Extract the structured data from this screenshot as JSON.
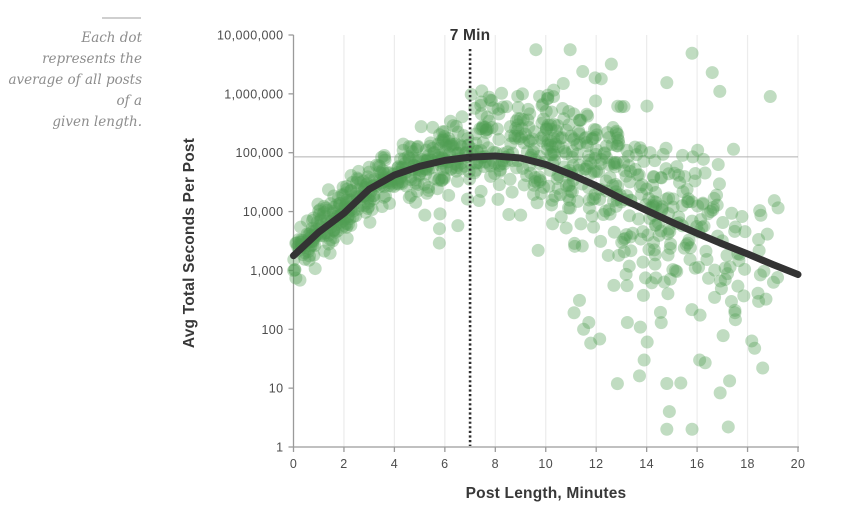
{
  "annotation": {
    "lines": [
      "Each dot represents the",
      "average of all posts of a",
      "given length."
    ]
  },
  "chart_data": {
    "type": "scatter",
    "title": "",
    "xlabel": "Post Length, Minutes",
    "ylabel": "Avg Total Seconds Per Post",
    "x_range": [
      0,
      20
    ],
    "x_ticks": [
      0,
      2,
      4,
      6,
      8,
      10,
      12,
      14,
      16,
      18,
      20
    ],
    "y_scale": "log",
    "y_range": [
      1,
      10000000
    ],
    "y_ticks": [
      {
        "value": 10000000,
        "label": "10,000,000"
      },
      {
        "value": 1000000,
        "label": "1,000,000"
      },
      {
        "value": 100000,
        "label": "100,000"
      },
      {
        "value": 10000,
        "label": "10,000"
      },
      {
        "value": 1000,
        "label": "1,000"
      },
      {
        "value": 100,
        "label": "100"
      },
      {
        "value": 10,
        "label": "10"
      },
      {
        "value": 1,
        "label": "1"
      }
    ],
    "grid": {
      "vertical_every": 2,
      "horizontal": false
    },
    "reference_line": {
      "value": 85000
    },
    "annotation_line": {
      "x": 7,
      "label": "7 Min"
    },
    "trend_curve": {
      "x": [
        0,
        1,
        2,
        3,
        4,
        5,
        6,
        7,
        8,
        9,
        10,
        11,
        12,
        13,
        14,
        15,
        16,
        17,
        18,
        19,
        20
      ],
      "log10_y": [
        3.25,
        3.65,
        3.97,
        4.38,
        4.62,
        4.77,
        4.87,
        4.925,
        4.945,
        4.91,
        4.8,
        4.63,
        4.44,
        4.22,
        4.02,
        3.82,
        3.63,
        3.45,
        3.28,
        3.1,
        2.93
      ],
      "y_seconds": [
        1780,
        4470,
        9330,
        24000,
        41700,
        58900,
        74100,
        84100,
        88100,
        81300,
        63100,
        42700,
        27500,
        16600,
        10500,
        6610,
        4270,
        2820,
        1910,
        1260,
        850
      ]
    },
    "scatter": {
      "count": 940,
      "seed": 20,
      "x_split": 12.5,
      "split_fraction": 0.74,
      "noise_profile": [
        [
          0,
          0.19
        ],
        [
          4,
          0.22
        ],
        [
          7,
          0.3
        ],
        [
          9,
          0.42
        ],
        [
          11,
          0.5
        ],
        [
          14,
          0.68
        ],
        [
          17,
          0.8
        ],
        [
          20,
          0.88
        ]
      ],
      "mean_shift": [
        [
          0,
          0
        ],
        [
          6,
          0.05
        ],
        [
          8,
          0.18
        ],
        [
          11,
          0.18
        ],
        [
          14,
          0.05
        ],
        [
          20,
          0
        ]
      ],
      "upper_tails": [
        {
          "x_min": 7,
          "prob": 0.1,
          "boost": [
            0.3,
            1.0
          ]
        },
        {
          "x_min": 9,
          "prob": 0.045,
          "boost": [
            1.0,
            2.1
          ]
        }
      ],
      "lower_tails": [
        {
          "x_min": 5,
          "prob": 0.035,
          "drop": [
            0.5,
            1.8
          ]
        },
        {
          "x_min": 11,
          "prob": 0.05,
          "drop": [
            1.0,
            3.3
          ]
        }
      ],
      "clamp_log": [
        0.25,
        6.75
      ],
      "outliers": [
        [
          12.6,
          3200000
        ],
        [
          15.8,
          4900000
        ],
        [
          16.6,
          2300000
        ],
        [
          14.8,
          1550000
        ],
        [
          16.9,
          1100000
        ],
        [
          18.9,
          900000
        ],
        [
          12.2,
          1800000
        ],
        [
          11.5,
          100
        ],
        [
          14.8,
          2
        ],
        [
          15.8,
          2
        ],
        [
          14.9,
          4
        ],
        [
          14.8,
          12
        ],
        [
          16.1,
          30
        ],
        [
          13.9,
          30
        ],
        [
          17.5,
          210
        ],
        [
          18.6,
          22
        ]
      ]
    },
    "style": {
      "dot_color": "#4f9e53",
      "dot_opacity": 0.36,
      "dot_radius": 6.5,
      "curve_color": "#333333",
      "curve_width": 7,
      "dotted_line_color": "#2e2e2e",
      "reference_line_color": "#b0b0b0",
      "axis_color": "#9a9a9a",
      "grid_color": "#ececec",
      "tick_label_color": "#4d4d4d"
    }
  }
}
